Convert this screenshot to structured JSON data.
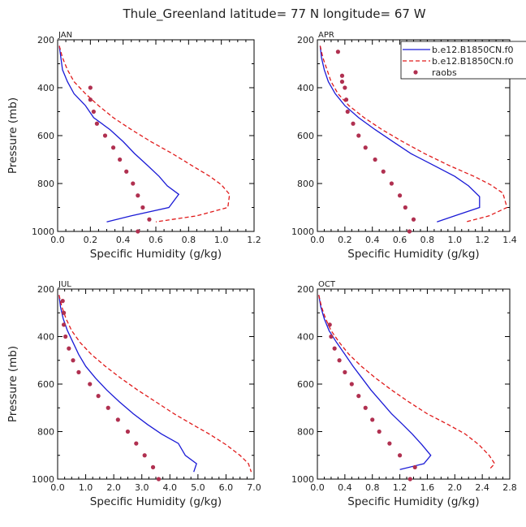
{
  "title": "Thule_Greenland  latitude= 77 N longitude= 67 W",
  "legend": [
    {
      "name": "b.e12.B1850CN.f0",
      "color": "#1a1ad6",
      "style": "solid"
    },
    {
      "name": "b.e12.B1850CN.f0",
      "color": "#e01a1a",
      "style": "dashed"
    },
    {
      "name": "raobs",
      "color": "#b03050",
      "style": "dots"
    }
  ],
  "chart_data": [
    {
      "type": "line",
      "panel": "JAN",
      "xlabel": "Specific Humidity (g/kg)",
      "ylabel": "Pressure (mb)",
      "xlim": [
        0,
        1.2
      ],
      "xticks": [
        0.0,
        0.2,
        0.4,
        0.6,
        0.8,
        1.0,
        1.2
      ],
      "xtick_labels": [
        "0.0",
        "0.2",
        "0.4",
        "0.6",
        "0.8",
        "1.0",
        "1.2"
      ],
      "ylim": [
        200,
        1000
      ],
      "yticks": [
        200,
        400,
        600,
        800,
        1000
      ],
      "series": [
        {
          "name": "b.e12.B1850CN.f0",
          "style": "solid",
          "points": [
            [
              0.01,
              225
            ],
            [
              0.02,
              275
            ],
            [
              0.03,
              325
            ],
            [
              0.06,
              375
            ],
            [
              0.1,
              425
            ],
            [
              0.17,
              475
            ],
            [
              0.22,
              525
            ],
            [
              0.32,
              575
            ],
            [
              0.4,
              625
            ],
            [
              0.47,
              675
            ],
            [
              0.55,
              725
            ],
            [
              0.62,
              770
            ],
            [
              0.67,
              810
            ],
            [
              0.74,
              845
            ],
            [
              0.68,
              900
            ],
            [
              0.45,
              935
            ],
            [
              0.3,
              960
            ]
          ]
        },
        {
          "name": "b.e12.B1850CN.f0",
          "style": "dashed",
          "points": [
            [
              0.01,
              225
            ],
            [
              0.03,
              275
            ],
            [
              0.06,
              325
            ],
            [
              0.1,
              375
            ],
            [
              0.17,
              425
            ],
            [
              0.25,
              475
            ],
            [
              0.34,
              525
            ],
            [
              0.45,
              575
            ],
            [
              0.57,
              625
            ],
            [
              0.7,
              675
            ],
            [
              0.82,
              725
            ],
            [
              0.93,
              770
            ],
            [
              1.0,
              805
            ],
            [
              1.05,
              845
            ],
            [
              1.04,
              900
            ],
            [
              0.85,
              935
            ],
            [
              0.6,
              960
            ]
          ]
        },
        {
          "name": "raobs",
          "style": "dots",
          "points": [
            [
              0.2,
              400
            ],
            [
              0.2,
              450
            ],
            [
              0.22,
              500
            ],
            [
              0.24,
              550
            ],
            [
              0.29,
              600
            ],
            [
              0.34,
              650
            ],
            [
              0.38,
              700
            ],
            [
              0.42,
              750
            ],
            [
              0.46,
              800
            ],
            [
              0.49,
              850
            ],
            [
              0.52,
              900
            ],
            [
              0.56,
              950
            ],
            [
              0.49,
              1000
            ]
          ]
        }
      ]
    },
    {
      "type": "line",
      "panel": "APR",
      "xlabel": "Specific Humidity (g/kg)",
      "ylabel": "",
      "xlim": [
        0,
        1.4
      ],
      "xticks": [
        0.0,
        0.2,
        0.4,
        0.6,
        0.8,
        1.0,
        1.2,
        1.4
      ],
      "xtick_labels": [
        "0.0",
        "0.2",
        "0.4",
        "0.6",
        "0.8",
        "1.0",
        "1.2",
        "1.4"
      ],
      "ylim": [
        200,
        1000
      ],
      "yticks": [
        200,
        400,
        600,
        800,
        1000
      ],
      "series": [
        {
          "name": "b.e12.B1850CN.f0",
          "style": "solid",
          "points": [
            [
              0.02,
              225
            ],
            [
              0.03,
              275
            ],
            [
              0.05,
              325
            ],
            [
              0.08,
              375
            ],
            [
              0.13,
              425
            ],
            [
              0.2,
              475
            ],
            [
              0.3,
              525
            ],
            [
              0.42,
              575
            ],
            [
              0.55,
              625
            ],
            [
              0.68,
              675
            ],
            [
              0.85,
              725
            ],
            [
              1.0,
              770
            ],
            [
              1.1,
              810
            ],
            [
              1.18,
              855
            ],
            [
              1.18,
              900
            ],
            [
              1.0,
              935
            ],
            [
              0.87,
              960
            ]
          ]
        },
        {
          "name": "b.e12.B1850CN.f0",
          "style": "dashed",
          "points": [
            [
              0.02,
              225
            ],
            [
              0.04,
              275
            ],
            [
              0.07,
              325
            ],
            [
              0.1,
              375
            ],
            [
              0.15,
              425
            ],
            [
              0.23,
              475
            ],
            [
              0.34,
              525
            ],
            [
              0.47,
              575
            ],
            [
              0.62,
              625
            ],
            [
              0.78,
              675
            ],
            [
              0.96,
              725
            ],
            [
              1.14,
              770
            ],
            [
              1.26,
              805
            ],
            [
              1.35,
              840
            ],
            [
              1.38,
              900
            ],
            [
              1.25,
              935
            ],
            [
              1.08,
              960
            ]
          ]
        },
        {
          "name": "raobs",
          "style": "dots",
          "points": [
            [
              0.15,
              250
            ],
            [
              0.18,
              350
            ],
            [
              0.18,
              375
            ],
            [
              0.2,
              400
            ],
            [
              0.21,
              450
            ],
            [
              0.22,
              500
            ],
            [
              0.26,
              550
            ],
            [
              0.3,
              600
            ],
            [
              0.35,
              650
            ],
            [
              0.42,
              700
            ],
            [
              0.48,
              750
            ],
            [
              0.54,
              800
            ],
            [
              0.6,
              850
            ],
            [
              0.64,
              900
            ],
            [
              0.7,
              950
            ],
            [
              0.67,
              1000
            ]
          ]
        }
      ]
    },
    {
      "type": "line",
      "panel": "JUL",
      "xlabel": "Specific Humidity (g/kg)",
      "ylabel": "Pressure (mb)",
      "xlim": [
        0,
        7
      ],
      "xticks": [
        0,
        1,
        2,
        3,
        4,
        5,
        6,
        7
      ],
      "xtick_labels": [
        "0.0",
        "1.0",
        "2.0",
        "3.0",
        "4.0",
        "5.0",
        "6.0",
        "7.0"
      ],
      "ylim": [
        200,
        1000
      ],
      "yticks": [
        200,
        400,
        600,
        800,
        1000
      ],
      "series": [
        {
          "name": "b.e12.B1850CN.f0",
          "style": "solid",
          "points": [
            [
              0.05,
              225
            ],
            [
              0.1,
              275
            ],
            [
              0.2,
              325
            ],
            [
              0.35,
              375
            ],
            [
              0.55,
              425
            ],
            [
              0.75,
              475
            ],
            [
              1.0,
              525
            ],
            [
              1.35,
              575
            ],
            [
              1.75,
              625
            ],
            [
              2.2,
              675
            ],
            [
              2.7,
              725
            ],
            [
              3.2,
              770
            ],
            [
              3.7,
              810
            ],
            [
              4.3,
              850
            ],
            [
              4.55,
              900
            ],
            [
              4.95,
              935
            ],
            [
              4.85,
              970
            ]
          ]
        },
        {
          "name": "b.e12.B1850CN.f0",
          "style": "dashed",
          "points": [
            [
              0.05,
              225
            ],
            [
              0.15,
              275
            ],
            [
              0.3,
              325
            ],
            [
              0.5,
              375
            ],
            [
              0.8,
              425
            ],
            [
              1.2,
              475
            ],
            [
              1.7,
              525
            ],
            [
              2.25,
              575
            ],
            [
              2.85,
              625
            ],
            [
              3.5,
              675
            ],
            [
              4.15,
              725
            ],
            [
              4.8,
              770
            ],
            [
              5.4,
              810
            ],
            [
              6.0,
              855
            ],
            [
              6.5,
              900
            ],
            [
              6.8,
              935
            ],
            [
              6.9,
              970
            ]
          ]
        },
        {
          "name": "raobs",
          "style": "dots",
          "points": [
            [
              0.18,
              250
            ],
            [
              0.22,
              300
            ],
            [
              0.22,
              350
            ],
            [
              0.28,
              400
            ],
            [
              0.4,
              450
            ],
            [
              0.55,
              500
            ],
            [
              0.75,
              550
            ],
            [
              1.15,
              600
            ],
            [
              1.45,
              650
            ],
            [
              1.8,
              700
            ],
            [
              2.15,
              750
            ],
            [
              2.5,
              800
            ],
            [
              2.8,
              850
            ],
            [
              3.1,
              900
            ],
            [
              3.4,
              950
            ],
            [
              3.6,
              1000
            ]
          ]
        }
      ]
    },
    {
      "type": "line",
      "panel": "OCT",
      "xlabel": "Specific Humidity (g/kg)",
      "ylabel": "",
      "xlim": [
        0,
        2.8
      ],
      "xticks": [
        0.0,
        0.4,
        0.8,
        1.2,
        1.6,
        2.0,
        2.4,
        2.8
      ],
      "xtick_labels": [
        "0.0",
        "0.4",
        "0.8",
        "1.2",
        "1.6",
        "2.0",
        "2.4",
        "2.8"
      ],
      "ylim": [
        200,
        1000
      ],
      "yticks": [
        200,
        400,
        600,
        800,
        1000
      ],
      "series": [
        {
          "name": "b.e12.B1850CN.f0",
          "style": "solid",
          "points": [
            [
              0.02,
              225
            ],
            [
              0.05,
              275
            ],
            [
              0.1,
              325
            ],
            [
              0.17,
              375
            ],
            [
              0.28,
              425
            ],
            [
              0.4,
              475
            ],
            [
              0.52,
              525
            ],
            [
              0.65,
              575
            ],
            [
              0.78,
              625
            ],
            [
              0.93,
              675
            ],
            [
              1.08,
              725
            ],
            [
              1.24,
              770
            ],
            [
              1.38,
              810
            ],
            [
              1.52,
              855
            ],
            [
              1.65,
              900
            ],
            [
              1.55,
              935
            ],
            [
              1.2,
              960
            ]
          ]
        },
        {
          "name": "b.e12.B1850CN.f0",
          "style": "dashed",
          "points": [
            [
              0.02,
              225
            ],
            [
              0.06,
              275
            ],
            [
              0.12,
              325
            ],
            [
              0.2,
              375
            ],
            [
              0.32,
              425
            ],
            [
              0.46,
              475
            ],
            [
              0.64,
              525
            ],
            [
              0.85,
              575
            ],
            [
              1.08,
              625
            ],
            [
              1.33,
              675
            ],
            [
              1.6,
              725
            ],
            [
              1.9,
              770
            ],
            [
              2.15,
              810
            ],
            [
              2.35,
              855
            ],
            [
              2.5,
              900
            ],
            [
              2.58,
              935
            ],
            [
              2.5,
              960
            ]
          ]
        },
        {
          "name": "raobs",
          "style": "dots",
          "points": [
            [
              0.18,
              350
            ],
            [
              0.2,
              400
            ],
            [
              0.25,
              450
            ],
            [
              0.32,
              500
            ],
            [
              0.4,
              550
            ],
            [
              0.5,
              600
            ],
            [
              0.6,
              650
            ],
            [
              0.7,
              700
            ],
            [
              0.8,
              750
            ],
            [
              0.9,
              800
            ],
            [
              1.05,
              850
            ],
            [
              1.2,
              900
            ],
            [
              1.42,
              950
            ],
            [
              1.35,
              1000
            ]
          ]
        }
      ]
    }
  ]
}
